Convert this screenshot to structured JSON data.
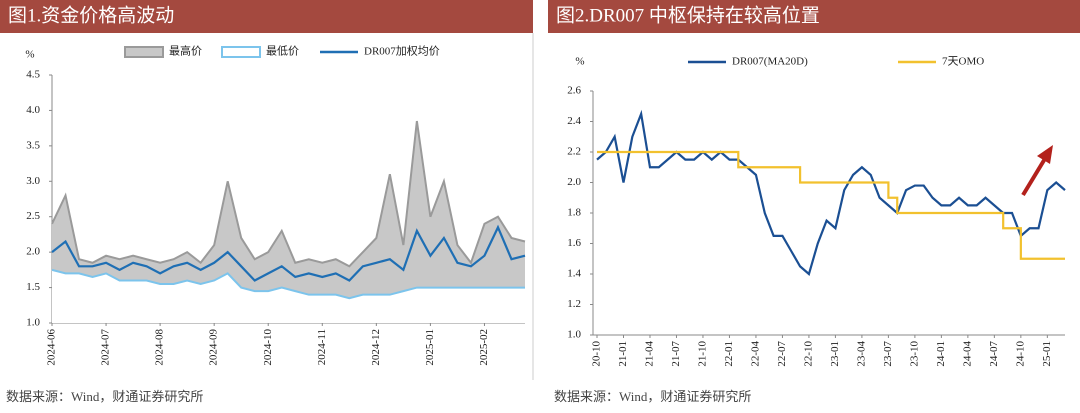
{
  "chart_data": [
    {
      "type": "line",
      "title": "图1.资金价格高波动",
      "ylabel": "%",
      "source": "数据来源：Wind，财通证券研究所",
      "categories": [
        "2024-06",
        null,
        null,
        null,
        "2024-07",
        null,
        null,
        null,
        "2024-08",
        null,
        null,
        null,
        "2024-09",
        null,
        null,
        null,
        "2024-10",
        null,
        null,
        null,
        "2024-11",
        null,
        null,
        null,
        "2024-12",
        null,
        null,
        null,
        "2025-01",
        null,
        null,
        null,
        "2025-02",
        null,
        null,
        null
      ],
      "ylim": [
        1.0,
        4.5
      ],
      "yticks": [
        {
          "value": 1.0,
          "label": "1.0"
        },
        1.5,
        {
          "value": 2.0,
          "label": "2.0"
        },
        2.5,
        {
          "value": 3.0,
          "label": "3.0"
        },
        3.5,
        {
          "value": 4.0,
          "label": "4.0"
        },
        4.5
      ],
      "series": [
        {
          "name": "最高价",
          "color": "#9a9a9a",
          "fill": "#c8c8c8",
          "values": [
            2.4,
            2.8,
            1.9,
            1.85,
            1.95,
            1.9,
            1.95,
            1.9,
            1.85,
            1.9,
            2.0,
            1.85,
            2.1,
            3.0,
            2.2,
            1.9,
            2.0,
            2.3,
            1.85,
            1.9,
            1.85,
            1.9,
            1.8,
            2.0,
            2.2,
            3.1,
            2.1,
            3.85,
            2.5,
            3.0,
            2.1,
            1.85,
            2.4,
            2.5,
            2.2,
            2.15
          ]
        },
        {
          "name": "最低价",
          "color": "#7cc4ec",
          "fill": "#ffffff",
          "values": [
            1.75,
            1.7,
            1.7,
            1.65,
            1.7,
            1.6,
            1.6,
            1.6,
            1.55,
            1.55,
            1.6,
            1.55,
            1.6,
            1.7,
            1.5,
            1.45,
            1.45,
            1.5,
            1.45,
            1.4,
            1.4,
            1.4,
            1.35,
            1.4,
            1.4,
            1.4,
            1.45,
            1.5,
            1.5,
            1.5,
            1.5,
            1.5,
            1.5,
            1.5,
            1.5,
            1.5
          ]
        },
        {
          "name": "DR007加权均价",
          "color": "#1f6fb4",
          "values": [
            2.0,
            2.15,
            1.8,
            1.8,
            1.85,
            1.75,
            1.85,
            1.8,
            1.7,
            1.8,
            1.85,
            1.75,
            1.85,
            2.0,
            1.8,
            1.6,
            1.7,
            1.8,
            1.65,
            1.7,
            1.65,
            1.7,
            1.6,
            1.8,
            1.85,
            1.9,
            1.75,
            2.3,
            1.95,
            2.2,
            1.85,
            1.8,
            1.95,
            2.35,
            1.9,
            1.95
          ]
        }
      ]
    },
    {
      "type": "line",
      "title": "图2.DR007 中枢保持在较高位置",
      "ylabel": "%",
      "source": "数据来源：Wind，财通证券研究所",
      "categories": [
        "20-10",
        null,
        null,
        "21-01",
        null,
        null,
        "21-04",
        null,
        null,
        "21-07",
        null,
        null,
        "21-10",
        null,
        null,
        "22-01",
        null,
        null,
        "22-04",
        null,
        null,
        "22-07",
        null,
        null,
        "22-10",
        null,
        null,
        "23-01",
        null,
        null,
        "23-04",
        null,
        null,
        "23-07",
        null,
        null,
        "23-10",
        null,
        null,
        "24-01",
        null,
        null,
        "24-04",
        null,
        null,
        "24-07",
        null,
        null,
        "24-10",
        null,
        null,
        "25-01",
        null,
        null
      ],
      "ylim": [
        1.0,
        2.6
      ],
      "yticks": [
        {
          "value": 1.0,
          "label": "1.0"
        },
        1.2,
        1.4,
        1.6,
        1.8,
        {
          "value": 2.0,
          "label": "2.0"
        },
        2.2,
        2.4,
        2.6
      ],
      "series": [
        {
          "name": "DR007(MA20D)",
          "color": "#1b4f93",
          "values": [
            2.15,
            2.2,
            2.3,
            2.0,
            2.3,
            2.45,
            2.1,
            2.1,
            2.15,
            2.2,
            2.15,
            2.15,
            2.2,
            2.15,
            2.2,
            2.15,
            2.15,
            2.1,
            2.05,
            1.8,
            1.65,
            1.65,
            1.55,
            1.45,
            1.4,
            1.6,
            1.75,
            1.7,
            1.95,
            2.05,
            2.1,
            2.05,
            1.9,
            1.85,
            1.8,
            1.95,
            1.98,
            1.98,
            1.9,
            1.85,
            1.85,
            1.9,
            1.85,
            1.85,
            1.9,
            1.85,
            1.8,
            1.8,
            1.65,
            1.7,
            1.7,
            1.95,
            2.0,
            1.95
          ]
        },
        {
          "name": "7天OMO",
          "color": "#f2c12e",
          "step": true,
          "values": [
            2.2,
            2.2,
            2.2,
            2.2,
            2.2,
            2.2,
            2.2,
            2.2,
            2.2,
            2.2,
            2.2,
            2.2,
            2.2,
            2.2,
            2.2,
            2.2,
            2.1,
            2.1,
            2.1,
            2.1,
            2.1,
            2.1,
            2.1,
            2.0,
            2.0,
            2.0,
            2.0,
            2.0,
            2.0,
            2.0,
            2.0,
            2.0,
            2.0,
            1.9,
            1.8,
            1.8,
            1.8,
            1.8,
            1.8,
            1.8,
            1.8,
            1.8,
            1.8,
            1.8,
            1.8,
            1.8,
            1.7,
            1.7,
            1.5,
            1.5,
            1.5,
            1.5,
            1.5,
            1.5
          ]
        }
      ]
    }
  ]
}
